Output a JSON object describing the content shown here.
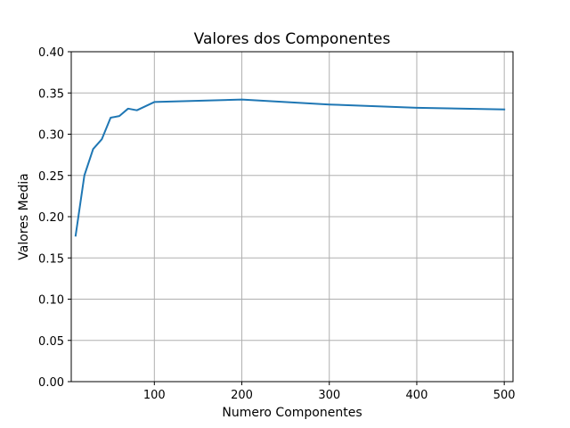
{
  "chart_data": {
    "type": "line",
    "title": "Valores dos Componentes",
    "xlabel": "Numero Componentes",
    "ylabel": "Valores Media",
    "xlim": [
      5,
      510
    ],
    "ylim": [
      0.0,
      0.4
    ],
    "xticks": [
      100,
      200,
      300,
      400,
      500
    ],
    "xtick_labels": [
      "100",
      "200",
      "300",
      "400",
      "500"
    ],
    "yticks": [
      0.0,
      0.05,
      0.1,
      0.15,
      0.2,
      0.25,
      0.3,
      0.35,
      0.4
    ],
    "ytick_labels": [
      "0.00",
      "0.05",
      "0.10",
      "0.15",
      "0.20",
      "0.25",
      "0.30",
      "0.35",
      "0.40"
    ],
    "grid": true,
    "series": [
      {
        "x": [
          10,
          20,
          30,
          40,
          50,
          60,
          70,
          80,
          100,
          200,
          300,
          400,
          500
        ],
        "values": [
          0.177,
          0.25,
          0.282,
          0.294,
          0.32,
          0.322,
          0.331,
          0.329,
          0.339,
          0.342,
          0.336,
          0.332,
          0.33
        ],
        "color": "#1f77b4"
      }
    ]
  }
}
